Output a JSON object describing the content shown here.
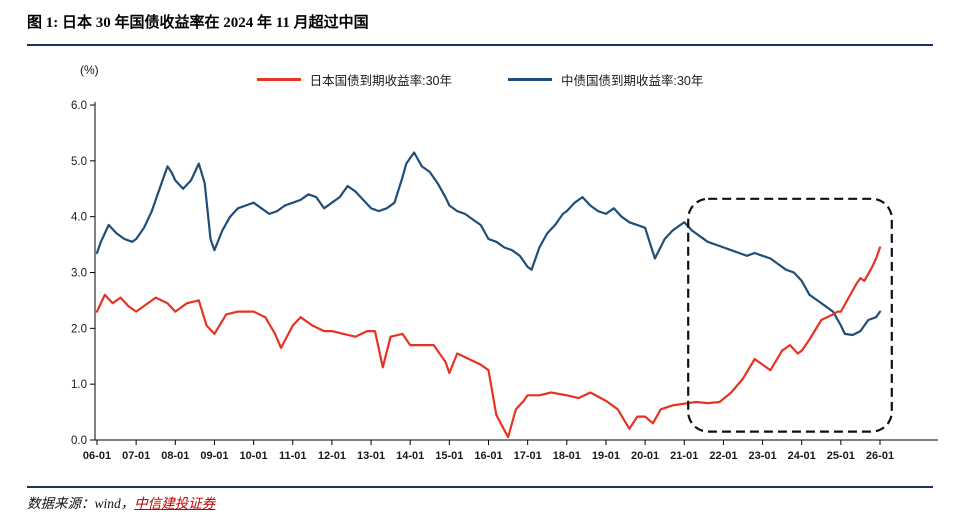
{
  "header": {
    "title": "图 1: 日本 30 年国债收益率在 2024 年 11 月超过中国"
  },
  "footer": {
    "source_prefix": "数据来源：wind，",
    "source_link": "中信建投证券"
  },
  "colors": {
    "rule": "#17375e",
    "japan_line": "#e63323",
    "china_line": "#1f4e79",
    "source_link": "#c00000",
    "axis": "#000000",
    "tick_text": "#1a1a1a"
  },
  "chart_data": {
    "type": "line",
    "title": "图 1: 日本 30 年国债收益率在 2024 年 11 月超过中国",
    "ylabel": "(%)",
    "xlabel": "",
    "grid": false,
    "legend_position": "top-center",
    "ylim": [
      0.0,
      6.0
    ],
    "xlim": [
      2006,
      2026
    ],
    "y_tick_labels": [
      "0.0",
      "1.0",
      "2.0",
      "3.0",
      "4.0",
      "5.0",
      "6.0"
    ],
    "x_tick_labels": [
      "06-01",
      "07-01",
      "08-01",
      "09-01",
      "10-01",
      "11-01",
      "12-01",
      "13-01",
      "14-01",
      "15-01",
      "16-01",
      "17-01",
      "18-01",
      "19-01",
      "20-01",
      "21-01",
      "22-01",
      "23-01",
      "24-01",
      "25-01",
      "26-01"
    ],
    "series": [
      {
        "id": "japan",
        "name": "日本国债到期收益率:30年",
        "color": "#e63323",
        "x": [
          2006.0,
          2006.2,
          2006.4,
          2006.6,
          2006.8,
          2007.0,
          2007.2,
          2007.5,
          2007.8,
          2008.0,
          2008.3,
          2008.6,
          2008.8,
          2009.0,
          2009.3,
          2009.6,
          2010.0,
          2010.3,
          2010.55,
          2010.7,
          2011.0,
          2011.2,
          2011.5,
          2011.8,
          2012.0,
          2012.3,
          2012.6,
          2012.9,
          2013.1,
          2013.3,
          2013.5,
          2013.8,
          2014.0,
          2014.3,
          2014.6,
          2014.9,
          2015.0,
          2015.2,
          2015.5,
          2015.8,
          2016.0,
          2016.2,
          2016.5,
          2016.7,
          2016.9,
          2017.0,
          2017.3,
          2017.6,
          2018.0,
          2018.3,
          2018.6,
          2019.0,
          2019.3,
          2019.6,
          2019.8,
          2020.0,
          2020.2,
          2020.4,
          2020.7,
          2021.0,
          2021.3,
          2021.6,
          2021.9,
          2022.2,
          2022.5,
          2022.8,
          2023.0,
          2023.2,
          2023.5,
          2023.7,
          2023.9,
          2024.0,
          2024.2,
          2024.5,
          2024.8,
          2024.92,
          2025.0,
          2025.2,
          2025.4,
          2025.5,
          2025.6,
          2025.8,
          2025.9,
          2026.0
        ],
        "y": [
          2.3,
          2.6,
          2.45,
          2.55,
          2.4,
          2.3,
          2.4,
          2.55,
          2.45,
          2.3,
          2.45,
          2.5,
          2.05,
          1.9,
          2.25,
          2.3,
          2.3,
          2.2,
          1.9,
          1.65,
          2.05,
          2.2,
          2.05,
          1.95,
          1.95,
          1.9,
          1.85,
          1.95,
          1.95,
          1.3,
          1.85,
          1.9,
          1.7,
          1.7,
          1.7,
          1.4,
          1.2,
          1.55,
          1.45,
          1.35,
          1.25,
          0.45,
          0.05,
          0.55,
          0.7,
          0.8,
          0.8,
          0.85,
          0.8,
          0.75,
          0.85,
          0.7,
          0.55,
          0.2,
          0.42,
          0.42,
          0.3,
          0.55,
          0.62,
          0.65,
          0.68,
          0.66,
          0.68,
          0.85,
          1.1,
          1.45,
          1.35,
          1.25,
          1.6,
          1.7,
          1.55,
          1.6,
          1.8,
          2.15,
          2.25,
          2.3,
          2.3,
          2.55,
          2.8,
          2.9,
          2.85,
          3.1,
          3.25,
          3.45
        ]
      },
      {
        "id": "china",
        "name": "中债国债到期收益率:30年",
        "color": "#1f4e79",
        "x": [
          2006.0,
          2006.1,
          2006.3,
          2006.5,
          2006.7,
          2006.9,
          2007.0,
          2007.2,
          2007.4,
          2007.6,
          2007.8,
          2007.9,
          2008.0,
          2008.2,
          2008.4,
          2008.6,
          2008.75,
          2008.9,
          2009.0,
          2009.2,
          2009.4,
          2009.6,
          2009.8,
          2010.0,
          2010.2,
          2010.4,
          2010.6,
          2010.8,
          2011.0,
          2011.2,
          2011.4,
          2011.6,
          2011.8,
          2012.0,
          2012.2,
          2012.4,
          2012.6,
          2012.8,
          2013.0,
          2013.2,
          2013.4,
          2013.6,
          2013.8,
          2013.9,
          2014.0,
          2014.1,
          2014.3,
          2014.5,
          2014.7,
          2014.9,
          2015.0,
          2015.2,
          2015.4,
          2015.6,
          2015.8,
          2016.0,
          2016.2,
          2016.4,
          2016.6,
          2016.8,
          2017.0,
          2017.1,
          2017.3,
          2017.5,
          2017.7,
          2017.9,
          2018.0,
          2018.2,
          2018.4,
          2018.6,
          2018.8,
          2019.0,
          2019.2,
          2019.4,
          2019.6,
          2019.8,
          2020.0,
          2020.25,
          2020.5,
          2020.7,
          2020.9,
          2021.0,
          2021.2,
          2021.4,
          2021.6,
          2021.8,
          2022.0,
          2022.2,
          2022.4,
          2022.6,
          2022.8,
          2023.0,
          2023.2,
          2023.4,
          2023.6,
          2023.8,
          2024.0,
          2024.2,
          2024.4,
          2024.6,
          2024.8,
          2025.0,
          2025.1,
          2025.3,
          2025.5,
          2025.7,
          2025.9,
          2026.0
        ],
        "y": [
          3.35,
          3.55,
          3.85,
          3.7,
          3.6,
          3.55,
          3.6,
          3.8,
          4.1,
          4.5,
          4.9,
          4.8,
          4.65,
          4.5,
          4.65,
          4.95,
          4.6,
          3.6,
          3.4,
          3.75,
          4.0,
          4.15,
          4.2,
          4.25,
          4.15,
          4.05,
          4.1,
          4.2,
          4.25,
          4.3,
          4.4,
          4.35,
          4.15,
          4.25,
          4.35,
          4.55,
          4.45,
          4.3,
          4.15,
          4.1,
          4.15,
          4.25,
          4.7,
          4.95,
          5.05,
          5.15,
          4.9,
          4.8,
          4.6,
          4.35,
          4.2,
          4.1,
          4.05,
          3.95,
          3.85,
          3.6,
          3.55,
          3.45,
          3.4,
          3.3,
          3.1,
          3.05,
          3.45,
          3.7,
          3.85,
          4.05,
          4.1,
          4.25,
          4.35,
          4.2,
          4.1,
          4.05,
          4.15,
          4.0,
          3.9,
          3.85,
          3.8,
          3.25,
          3.6,
          3.75,
          3.85,
          3.9,
          3.75,
          3.65,
          3.55,
          3.5,
          3.45,
          3.4,
          3.35,
          3.3,
          3.35,
          3.3,
          3.25,
          3.15,
          3.05,
          3.0,
          2.85,
          2.6,
          2.5,
          2.4,
          2.3,
          2.05,
          1.9,
          1.88,
          1.95,
          2.15,
          2.2,
          2.3
        ]
      }
    ],
    "highlight_box": {
      "x_from": 2021.1,
      "x_to": 2026.3,
      "y_from": 0.15,
      "y_to": 4.32,
      "style": "black dashed rounded rectangle"
    }
  }
}
